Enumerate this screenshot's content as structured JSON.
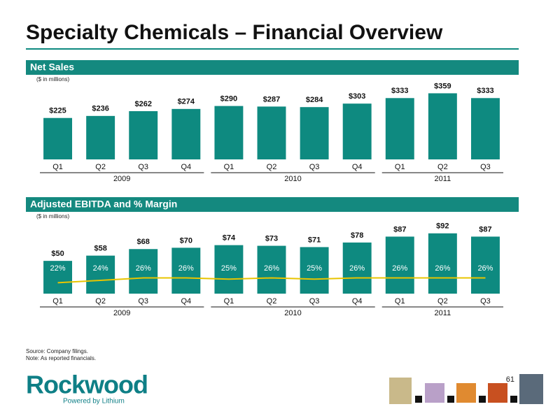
{
  "title": "Specialty Chemicals – Financial Overview",
  "source": "Source:  Company filings.",
  "note": "Note:      As reported financials.",
  "page_number": "61",
  "logo": {
    "name": "Rockwood",
    "tagline": "Powered by Lithium"
  },
  "chart_data": [
    {
      "type": "bar",
      "title": "Net Sales",
      "subtitle": "($ in millions)",
      "color": "#0e8a80",
      "groups": [
        {
          "label": "2009",
          "categories": [
            "Q1",
            "Q2",
            "Q3",
            "Q4"
          ]
        },
        {
          "label": "2010",
          "categories": [
            "Q1",
            "Q2",
            "Q3",
            "Q4"
          ]
        },
        {
          "label": "2011",
          "categories": [
            "Q1",
            "Q2",
            "Q3"
          ]
        }
      ],
      "values": [
        225,
        236,
        262,
        274,
        290,
        287,
        284,
        303,
        333,
        359,
        333
      ],
      "value_labels": [
        "$225",
        "$236",
        "$262",
        "$274",
        "$290",
        "$287",
        "$284",
        "$303",
        "$333",
        "$359",
        "$333"
      ],
      "ylim": [
        0,
        410
      ]
    },
    {
      "type": "bar",
      "title": "Adjusted EBITDA and % Margin",
      "subtitle": "($ in millions)",
      "color": "#0e8a80",
      "groups": [
        {
          "label": "2009",
          "categories": [
            "Q1",
            "Q2",
            "Q3",
            "Q4"
          ]
        },
        {
          "label": "2010",
          "categories": [
            "Q1",
            "Q2",
            "Q3",
            "Q4"
          ]
        },
        {
          "label": "2011",
          "categories": [
            "Q1",
            "Q2",
            "Q3"
          ]
        }
      ],
      "values": [
        50,
        58,
        68,
        70,
        74,
        73,
        71,
        78,
        87,
        92,
        87
      ],
      "value_labels": [
        "$50",
        "$58",
        "$68",
        "$70",
        "$74",
        "$73",
        "$71",
        "$78",
        "$87",
        "$92",
        "$87"
      ],
      "ylim": [
        0,
        96
      ],
      "margin": {
        "color": "#e8c400",
        "axis": "y2",
        "values": [
          22,
          24,
          26,
          26,
          25,
          26,
          25,
          26,
          26,
          26,
          26
        ],
        "value_labels": [
          "22%",
          "24%",
          "26%",
          "26%",
          "25%",
          "26%",
          "25%",
          "26%",
          "26%",
          "26%",
          "26%"
        ]
      },
      "y2lim": [
        13,
        65
      ]
    }
  ]
}
